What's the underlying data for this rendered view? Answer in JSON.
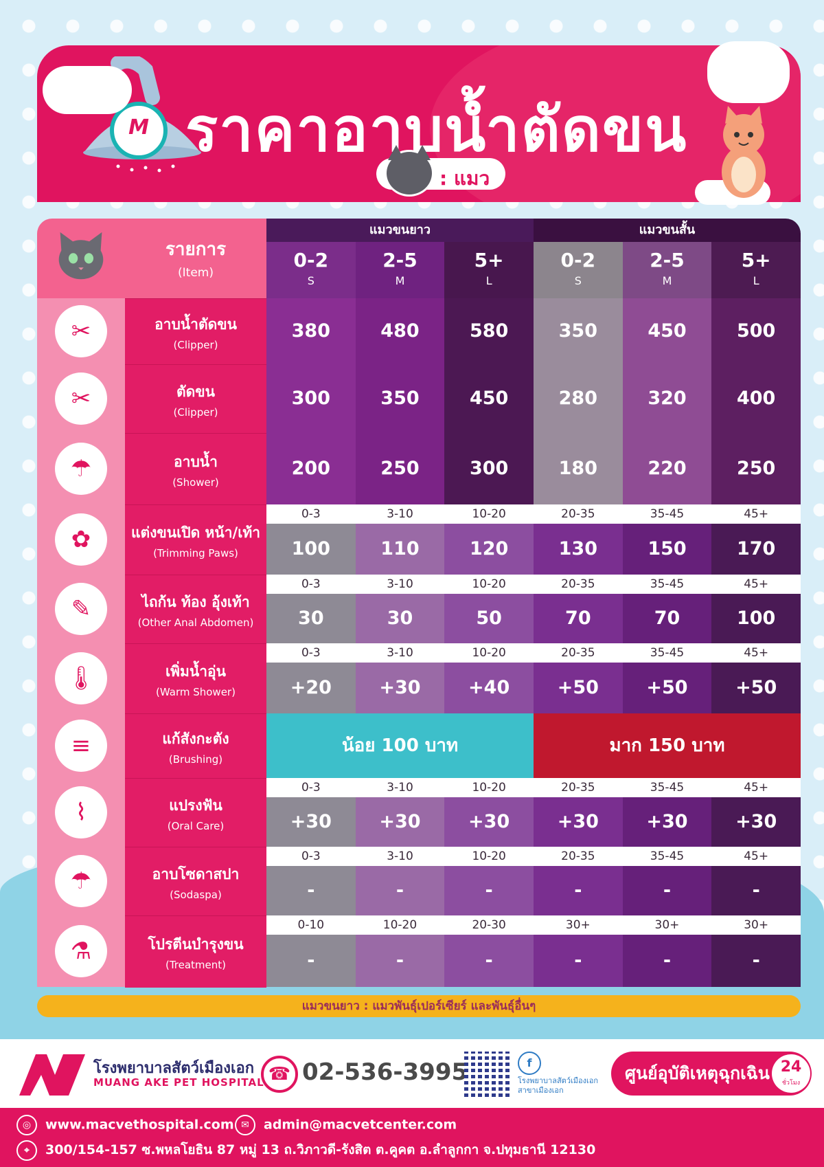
{
  "header": {
    "title": "ราคาอาบน้ำตัดขน",
    "pet_label": ": แมว",
    "logo_letter": "M"
  },
  "table": {
    "item_head_th": "รายการ",
    "item_head_en": "(Item)",
    "groups": [
      "แมวขนยาว",
      "แมวขนสั้น"
    ],
    "columns": [
      {
        "age": "0-2",
        "size": "S"
      },
      {
        "age": "2-5",
        "size": "M"
      },
      {
        "age": "5+",
        "size": "L"
      },
      {
        "age": "0-2",
        "size": "S"
      },
      {
        "age": "2-5",
        "size": "M"
      },
      {
        "age": "5+",
        "size": "L"
      }
    ],
    "rows": [
      {
        "icon": "clipper-shower-icon",
        "th": "อาบน้ำตัดขน",
        "en": "(Clipper)",
        "weights": null,
        "prices": [
          "380",
          "480",
          "580",
          "350",
          "450",
          "500"
        ]
      },
      {
        "icon": "clipper-icon",
        "th": "ตัดขน",
        "en": "(Clipper)",
        "weights": null,
        "prices": [
          "300",
          "350",
          "450",
          "280",
          "320",
          "400"
        ]
      },
      {
        "icon": "shower-icon",
        "th": "อาบน้ำ",
        "en": "(Shower)",
        "weights": null,
        "prices": [
          "200",
          "250",
          "300",
          "180",
          "220",
          "250"
        ]
      },
      {
        "icon": "dog-grooming-icon",
        "th": "แต่งขนเปิด หน้า/เท้า",
        "en": "(Trimming Paws)",
        "weights": [
          "0-3",
          "3-10",
          "10-20",
          "20-35",
          "35-45",
          "45+"
        ],
        "prices": [
          "100",
          "110",
          "120",
          "130",
          "150",
          "170"
        ]
      },
      {
        "icon": "trimmer-icon",
        "th": "ไถก้น ท้อง อุ้งเท้า",
        "en": "(Other Anal Abdomen)",
        "weights": [
          "0-3",
          "3-10",
          "10-20",
          "20-35",
          "35-45",
          "45+"
        ],
        "prices": [
          "30",
          "30",
          "50",
          "70",
          "70",
          "100"
        ]
      },
      {
        "icon": "thermometer-icon",
        "th": "เพิ่มน้ำอุ่น",
        "en": "(Warm Shower)",
        "weights": [
          "0-3",
          "3-10",
          "10-20",
          "20-35",
          "35-45",
          "45+"
        ],
        "prices": [
          "+20",
          "+30",
          "+40",
          "+50",
          "+50",
          "+50"
        ]
      },
      {
        "icon": "comb-icon",
        "th": "แก้สังกะตัง",
        "en": "(Brushing)",
        "weights": null,
        "banner_low": "น้อย 100 บาท",
        "banner_high": "มาก 150 บาท"
      },
      {
        "icon": "toothbrush-icon",
        "th": "แปรงฟัน",
        "en": "(Oral Care)",
        "weights": [
          "0-3",
          "3-10",
          "10-20",
          "20-35",
          "35-45",
          "45+"
        ],
        "prices": [
          "+30",
          "+30",
          "+30",
          "+30",
          "+30",
          "+30"
        ]
      },
      {
        "icon": "soda-shower-icon",
        "th": "อาบโซดาสปา",
        "en": "(Sodaspa)",
        "weights": [
          "0-3",
          "3-10",
          "10-20",
          "20-35",
          "35-45",
          "45+"
        ],
        "prices": [
          "-",
          "-",
          "-",
          "-",
          "-",
          "-"
        ]
      },
      {
        "icon": "bottle-icon",
        "th": "โปรตีนบำรุงขน",
        "en": "(Treatment)",
        "weights": [
          "0-10",
          "10-20",
          "20-30",
          "30+",
          "30+",
          "30+"
        ],
        "prices": [
          "-",
          "-",
          "-",
          "-",
          "-",
          "-"
        ]
      }
    ]
  },
  "note": "แมวขนยาว : แมวพันธุ์เปอร์เซียร์ และพันธุ์อื่นๆ",
  "footer": {
    "hospital_th": "โรงพยาบาลสัตว์เมืองเอก",
    "hospital_en": "MUANG AKE PET HOSPITAL",
    "phone": "02-536-3995",
    "fb_line1": "โรงพยาบาลสัตว์เมืองเอก",
    "fb_line2": "สาขาเมืองเอก",
    "emergency": "ศูนย์อุบัติเหตุฉุกเฉิน",
    "hours_num": "24",
    "hours_label": "ชั่วโมง",
    "website": "www.macvethospital.com",
    "email": "admin@macvetcenter.com",
    "address": "300/154-157 ซ.พหลโยธิน 87 หมู่ 13 ถ.วิภาวดี-รังสิต ต.คูคต อ.ลำลูกกา จ.ปทุมธานี 12130"
  },
  "colors": {
    "brand_pink": "#e0145f",
    "teal": "#3dbfca",
    "red": "#c0182e",
    "purple_dark": "#4a1a52"
  }
}
